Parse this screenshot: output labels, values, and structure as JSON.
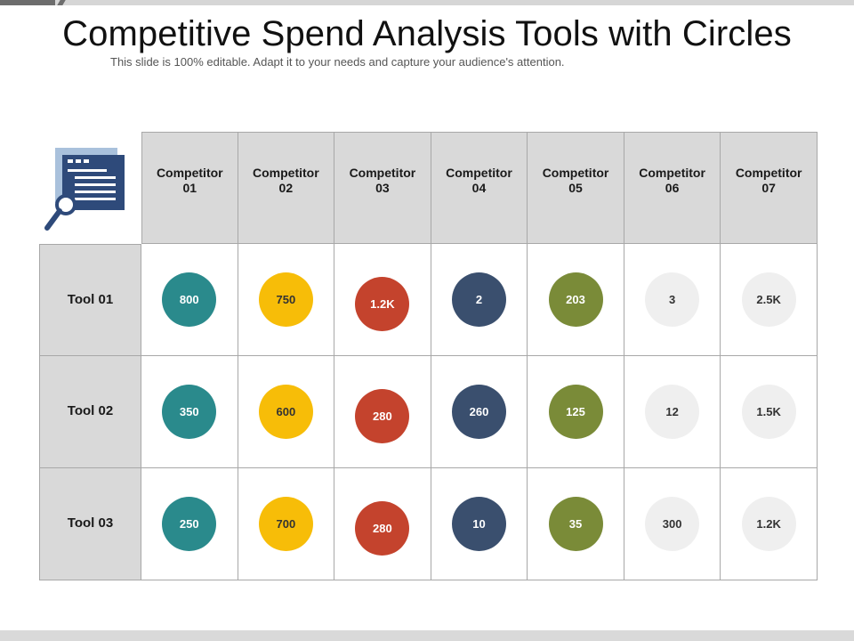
{
  "slide": {
    "title": "Competitive Spend Analysis Tools with Circles",
    "subtitle": "This slide is 100% editable. Adapt it to your needs and capture your audience's attention."
  },
  "icon": {
    "name": "document-search-icon",
    "colors": {
      "page": "#2e4a7a",
      "back": "#a9c1dc",
      "lens": "#2e4a7a"
    }
  },
  "table": {
    "competitors": [
      "Competitor\n01",
      "Competitor\n02",
      "Competitor\n03",
      "Competitor\n04",
      "Competitor\n05",
      "Competitor\n06",
      "Competitor\n07"
    ],
    "rows": [
      {
        "tool": "Tool 01",
        "values": [
          "800",
          "750",
          "1.2K",
          "2",
          "203",
          "3",
          "2.5K"
        ]
      },
      {
        "tool": "Tool 02",
        "values": [
          "350",
          "600",
          "280",
          "260",
          "125",
          "12",
          "1.5K"
        ]
      },
      {
        "tool": "Tool 03",
        "values": [
          "250",
          "700",
          "280",
          "10",
          "35",
          "300",
          "1.2K"
        ]
      }
    ],
    "circle_colors": [
      "#2a8a8c",
      "#f7bd08",
      "#c4432d",
      "#3a4f6e",
      "#7a8b38",
      "#efefef",
      "#efefef"
    ]
  }
}
